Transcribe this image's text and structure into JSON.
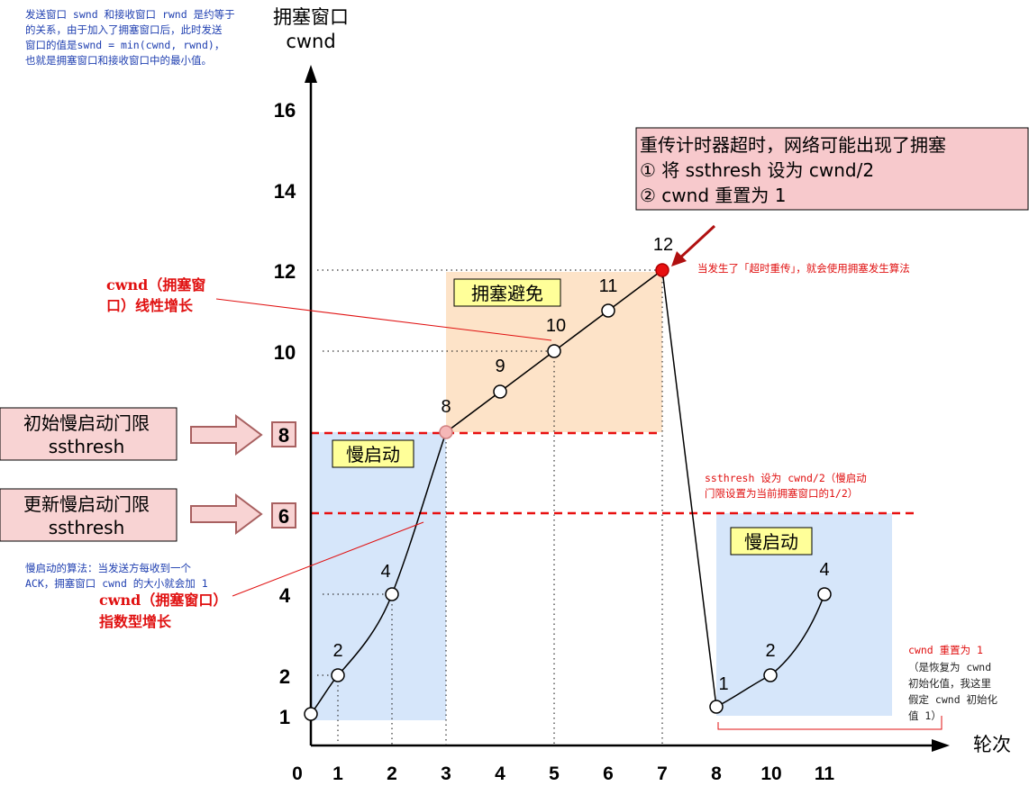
{
  "top_note": {
    "lines": [
      "发送窗口 swnd 和接收窗口 rwnd 是约等于",
      "的关系，由于加入了拥塞窗口后，此时发送",
      "窗口的值是swnd = min(cwnd, rwnd)，",
      "也就是拥塞窗口和接收窗口中的最小值。"
    ]
  },
  "axis": {
    "y_title_1": "拥塞窗口",
    "y_title_2": "cwnd",
    "x_title": "轮次"
  },
  "chart_data": {
    "type": "line",
    "y_ticks": [
      "16",
      "14",
      "12",
      "10",
      "8",
      "6",
      "4",
      "2",
      "1"
    ],
    "x_ticks": [
      "0",
      "1",
      "2",
      "3",
      "4",
      "5",
      "6",
      "7",
      "8",
      "10",
      "11"
    ],
    "series_slow_start_1": {
      "x": [
        0,
        1,
        2,
        3
      ],
      "y": [
        1,
        2,
        4,
        8
      ],
      "labels": [
        "1",
        "2",
        "4",
        "8"
      ]
    },
    "series_congestion_avoidance": {
      "x": [
        3,
        4,
        5,
        6,
        7
      ],
      "y": [
        8,
        9,
        10,
        11,
        12
      ],
      "labels": [
        "9",
        "10",
        "11",
        "12"
      ]
    },
    "series_slow_start_2": {
      "x": [
        8,
        10,
        11
      ],
      "y": [
        1,
        2,
        4
      ],
      "labels": [
        "1",
        "2",
        "4"
      ]
    },
    "ssthresh_initial": 8,
    "ssthresh_updated": 6,
    "point_colors": {
      "normal": "#ffffff",
      "threshold": "#f5b7b7",
      "timeout": "#e81010"
    }
  },
  "regions": {
    "slow_start_1": "慢启动",
    "congestion_avoidance": "拥塞避免",
    "slow_start_2": "慢启动"
  },
  "legend": {
    "initial_threshold_1": "初始慢启动门限",
    "initial_threshold_2": "ssthresh",
    "initial_threshold_value": "8",
    "updated_threshold_1": "更新慢启动门限",
    "updated_threshold_2": "ssthresh",
    "updated_threshold_value": "6"
  },
  "timeout_box": {
    "line1": "重传计时器超时，网络可能出现了拥塞",
    "line2": "① 将 ssthresh 设为 cwnd/2",
    "line3": "② cwnd 重置为 1"
  },
  "annotations": {
    "timeout_note": "当发生了「超时重传」，就会使用拥塞发生算法",
    "linear_1": "cwnd（拥塞窗",
    "linear_2": "口）线性增长",
    "ssthresh_note_1": "ssthresh 设为 cwnd/2（慢启动",
    "ssthresh_note_2": "门限设置为当前拥塞窗口的1/2）",
    "slow_algo_1": "慢启动的算法：当发送方每收到一个",
    "slow_algo_2": "ACK，拥塞窗口 cwnd 的大小就会加 1",
    "exp_1": "cwnd（拥塞窗口）",
    "exp_2": "指数型增长",
    "reset_1": "cwnd 重置为 1",
    "reset_2": "（是恢复为 cwnd",
    "reset_3": "初始化值，我这里",
    "reset_4": "假定 cwnd 初始化",
    "reset_5": "值 1）"
  },
  "colors": {
    "slow_start_fill": "#d6e6fa",
    "congestion_fill": "#fde3c8",
    "label_box_fill": "#ffff99",
    "timeout_box_fill": "#f7c9cc",
    "arrow_fill": "#f8d3d3",
    "arrow_stroke": "#a86060",
    "threshold_line": "#e81010"
  }
}
